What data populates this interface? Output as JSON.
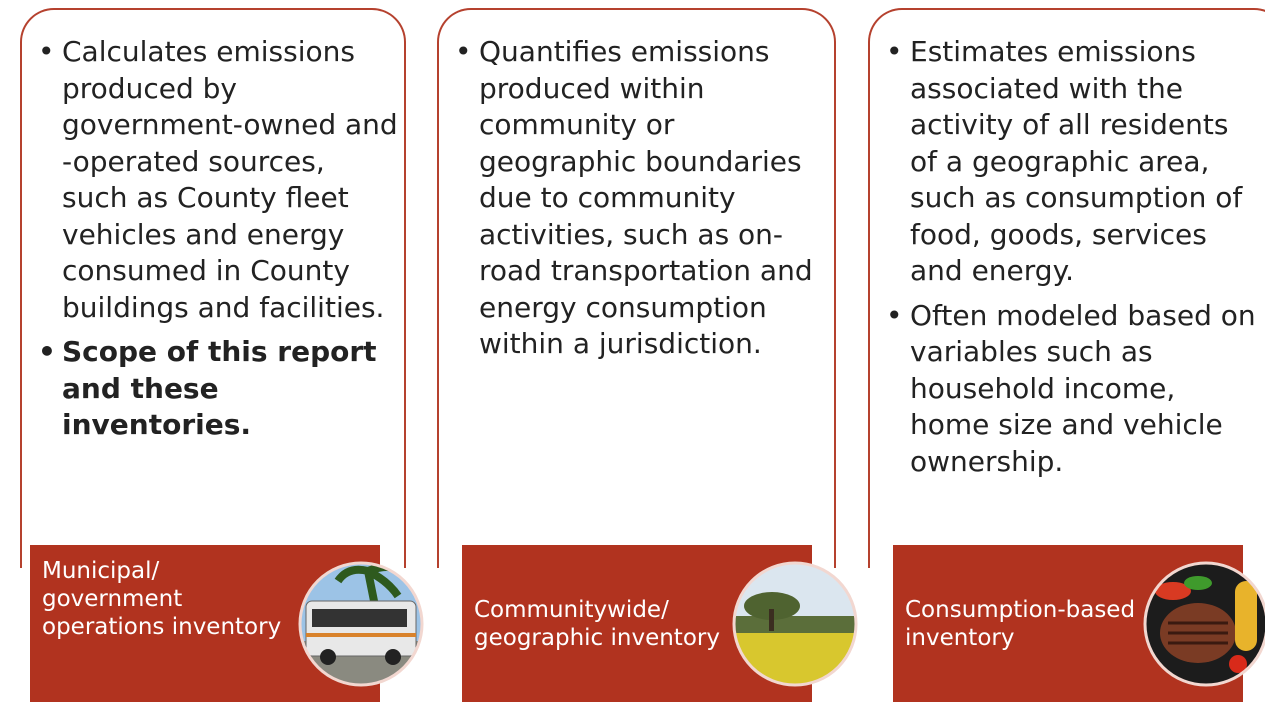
{
  "panels": [
    {
      "bullets": [
        "Calculates emissions produced by government-owned and -operated sources, such as County fleet vehicles and energy consumed in County buildings and facilities.",
        "Scope of this report and these inventories."
      ],
      "label": "Municipal/ government operations inventory"
    },
    {
      "bullets": [
        "Quantifies emissions produced within community or geographic boundaries due to community activities, such as on-road transportation and energy consumption within a jurisdiction."
      ],
      "label": "Communitywide/ geographic inventory"
    },
    {
      "bullets": [
        "Estimates emissions associated with the activity of all residents of a geographic area, such as consumption of food, goods, services and energy.",
        "Often modeled based on variables such as household income, home size and vehicle ownership."
      ],
      "label": "Consumption-based inventory"
    }
  ]
}
